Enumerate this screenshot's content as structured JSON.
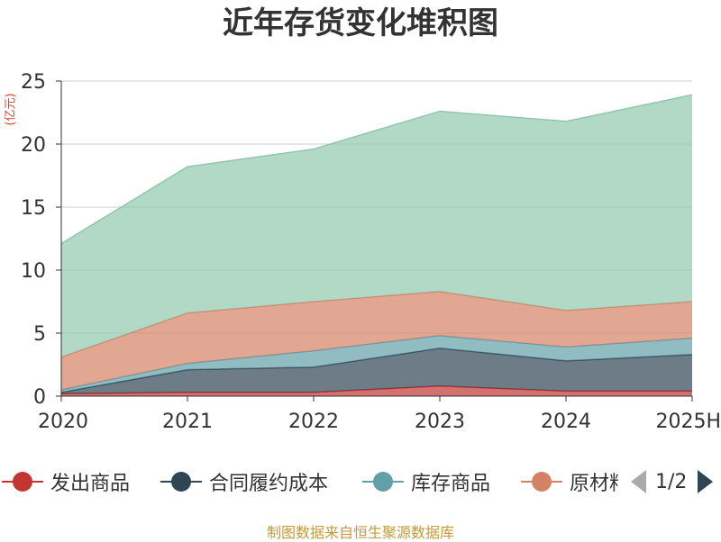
{
  "title": "近年存货变化堆积图",
  "unit_label": "(亿元)",
  "source_text": "制图数据来自恒生聚源数据库",
  "pager": {
    "text": "1/2"
  },
  "chart_data": {
    "type": "area",
    "stacked": true,
    "title": "近年存货变化堆积图",
    "ylabel": "(亿元)",
    "ylim": [
      0,
      25
    ],
    "yticks": [
      0,
      5,
      10,
      15,
      20,
      25
    ],
    "grid": true,
    "categories": [
      "2020",
      "2021",
      "2022",
      "2023",
      "2024",
      "2025H"
    ],
    "series": [
      {
        "name": "发出商品",
        "color": "#c23531",
        "values": [
          0.2,
          0.3,
          0.3,
          0.8,
          0.4,
          0.4
        ]
      },
      {
        "name": "合同履约成本",
        "color": "#2f4554",
        "values": [
          0.1,
          1.8,
          2.0,
          3.0,
          2.4,
          2.9
        ]
      },
      {
        "name": "库存商品",
        "color": "#61a0a8",
        "values": [
          0.2,
          0.5,
          1.3,
          1.0,
          1.1,
          1.3
        ]
      },
      {
        "name": "原材料",
        "color": "#d48265",
        "values": [
          2.6,
          4.0,
          3.9,
          3.5,
          2.9,
          2.9
        ]
      },
      {
        "name": "",
        "color": "#91c7ae",
        "values": [
          9.0,
          11.6,
          12.1,
          14.3,
          15.0,
          16.4
        ]
      }
    ],
    "legend": {
      "position": "bottom",
      "visible_items": [
        "发出商品",
        "合同履约成本",
        "库存商品",
        "原材料"
      ]
    }
  }
}
